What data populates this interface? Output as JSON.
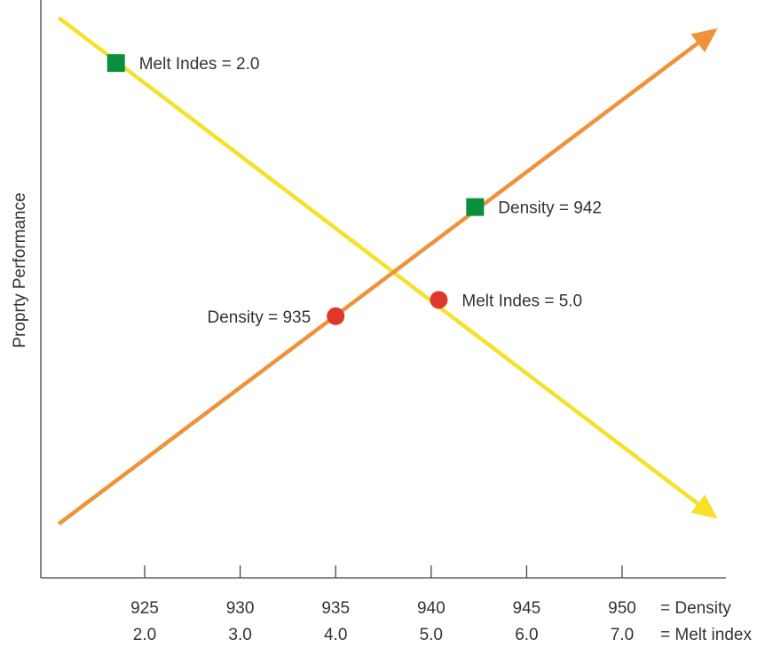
{
  "chart_data": {
    "type": "line",
    "title": "",
    "ylabel": "Proprty Performance",
    "x_axis_rows": [
      {
        "name": "= Density",
        "ticks": [
          "925",
          "930",
          "935",
          "940",
          "945",
          "950"
        ]
      },
      {
        "name": "= Melt index",
        "ticks": [
          "2.0",
          "3.0",
          "4.0",
          "5.0",
          "6.0",
          "7.0"
        ]
      }
    ],
    "tick_values_density": [
      925,
      930,
      935,
      940,
      945,
      950
    ],
    "xlim": [
      920,
      955
    ],
    "ylim": [
      0,
      100
    ],
    "grid": false,
    "legend": "none",
    "series": [
      {
        "id": "density",
        "color": "#f0923a",
        "x": [
          920.5,
          955
        ],
        "y": [
          4,
          98
        ],
        "arrow": "end"
      },
      {
        "id": "melt-index",
        "color": "#f7e02a",
        "x": [
          920.5,
          955
        ],
        "y": [
          100,
          5
        ],
        "arrow": "end"
      }
    ],
    "markers": [
      {
        "id": "melt-2",
        "shape": "square",
        "color": "#0a8f3c",
        "x": 923.5,
        "y": 91.4,
        "label": "Melt Indes = 2.0",
        "label_side": "right"
      },
      {
        "id": "density-942",
        "shape": "square",
        "color": "#0a8f3c",
        "x": 942.3,
        "y": 64.1,
        "label": "Density = 942",
        "label_side": "right"
      },
      {
        "id": "density-935",
        "shape": "circle",
        "color": "#e0372b",
        "x": 935,
        "y": 43.4,
        "label": "Density = 935",
        "label_side": "left"
      },
      {
        "id": "melt-5",
        "shape": "circle",
        "color": "#e0372b",
        "x": 940.4,
        "y": 46.5,
        "label": "Melt Indes = 5.0",
        "label_side": "right"
      }
    ],
    "axis_color": "#444444"
  }
}
